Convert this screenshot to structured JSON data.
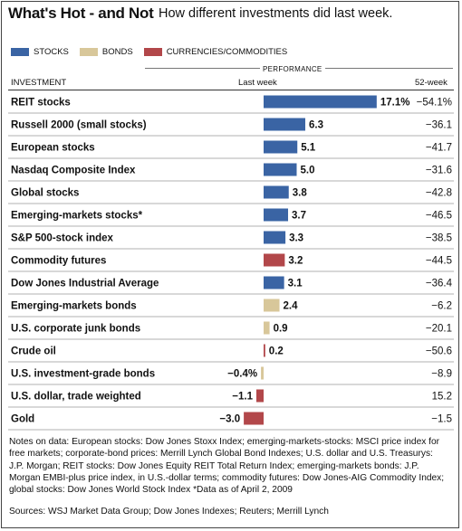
{
  "header": {
    "title": "What's Hot - and Not",
    "subtitle": "How different investments did last week."
  },
  "legend": [
    {
      "label": "STOCKS",
      "color": "#3a64a4"
    },
    {
      "label": "BONDS",
      "color": "#d8c79a"
    },
    {
      "label": "CURRENCIES/COMMODITIES",
      "color": "#b2474a"
    }
  ],
  "columns": {
    "performance": "PERFORMANCE",
    "investment": "INVESTMENT",
    "last_week": "Last week",
    "week52": "52-week"
  },
  "chart_data": {
    "type": "bar",
    "orientation": "horizontal",
    "categories": [
      "REIT stocks",
      "Russell 2000 (small stocks)",
      "European stocks",
      "Nasdaq Composite Index",
      "Global stocks",
      "Emerging-markets stocks*",
      "S&P 500-stock index",
      "Commodity futures",
      "Dow Jones Industrial Average",
      "Emerging-markets bonds",
      "U.S. corporate junk bonds",
      "Crude oil",
      "U.S. investment-grade bonds",
      "U.S. dollar, trade weighted",
      "Gold"
    ],
    "values": [
      17.1,
      6.3,
      5.1,
      5.0,
      3.8,
      3.7,
      3.3,
      3.2,
      3.1,
      2.4,
      0.9,
      0.2,
      -0.4,
      -1.1,
      -3.0
    ],
    "labels": [
      "17.1%",
      "6.3",
      "5.1",
      "5.0",
      "3.8",
      "3.7",
      "3.3",
      "3.2",
      "3.1",
      "2.4",
      "0.9",
      "0.2",
      "−0.4%",
      "−1.1",
      "−3.0"
    ],
    "groups": [
      "stocks",
      "stocks",
      "stocks",
      "stocks",
      "stocks",
      "stocks",
      "stocks",
      "commodities",
      "stocks",
      "bonds",
      "bonds",
      "commodities",
      "bonds",
      "commodities",
      "commodities"
    ],
    "week52": [
      "−54.1%",
      "−36.1",
      "−41.7",
      "−31.6",
      "−42.8",
      "−46.5",
      "−38.5",
      "−44.5",
      "−36.4",
      "−6.2",
      "−20.1",
      "−50.6",
      "−8.9",
      "15.2",
      "−1.5"
    ],
    "colors": {
      "stocks": "#3a64a4",
      "bonds": "#d8c79a",
      "commodities": "#b2474a"
    }
  },
  "footer": {
    "notes": "Notes on data: European stocks: Dow Jones Stoxx Index; emerging-markets-stocks: MSCI price index for free markets; corporate-bond prices: Merrill Lynch Global Bond Indexes; U.S. dollar and U.S. Treasurys: J.P. Morgan; REIT stocks: Dow Jones Equity REIT Total Return Index; emerging-markets bonds: J.P. Morgan EMBI-plus price index, in U.S.-dollar terms; commodity futures: Dow Jones-AIG Commodity Index; global stocks: Dow Jones World Stock Index  *Data as of April 2, 2009",
    "sources": "Sources: WSJ Market Data Group; Dow Jones Indexes; Reuters; Merrill Lynch"
  }
}
